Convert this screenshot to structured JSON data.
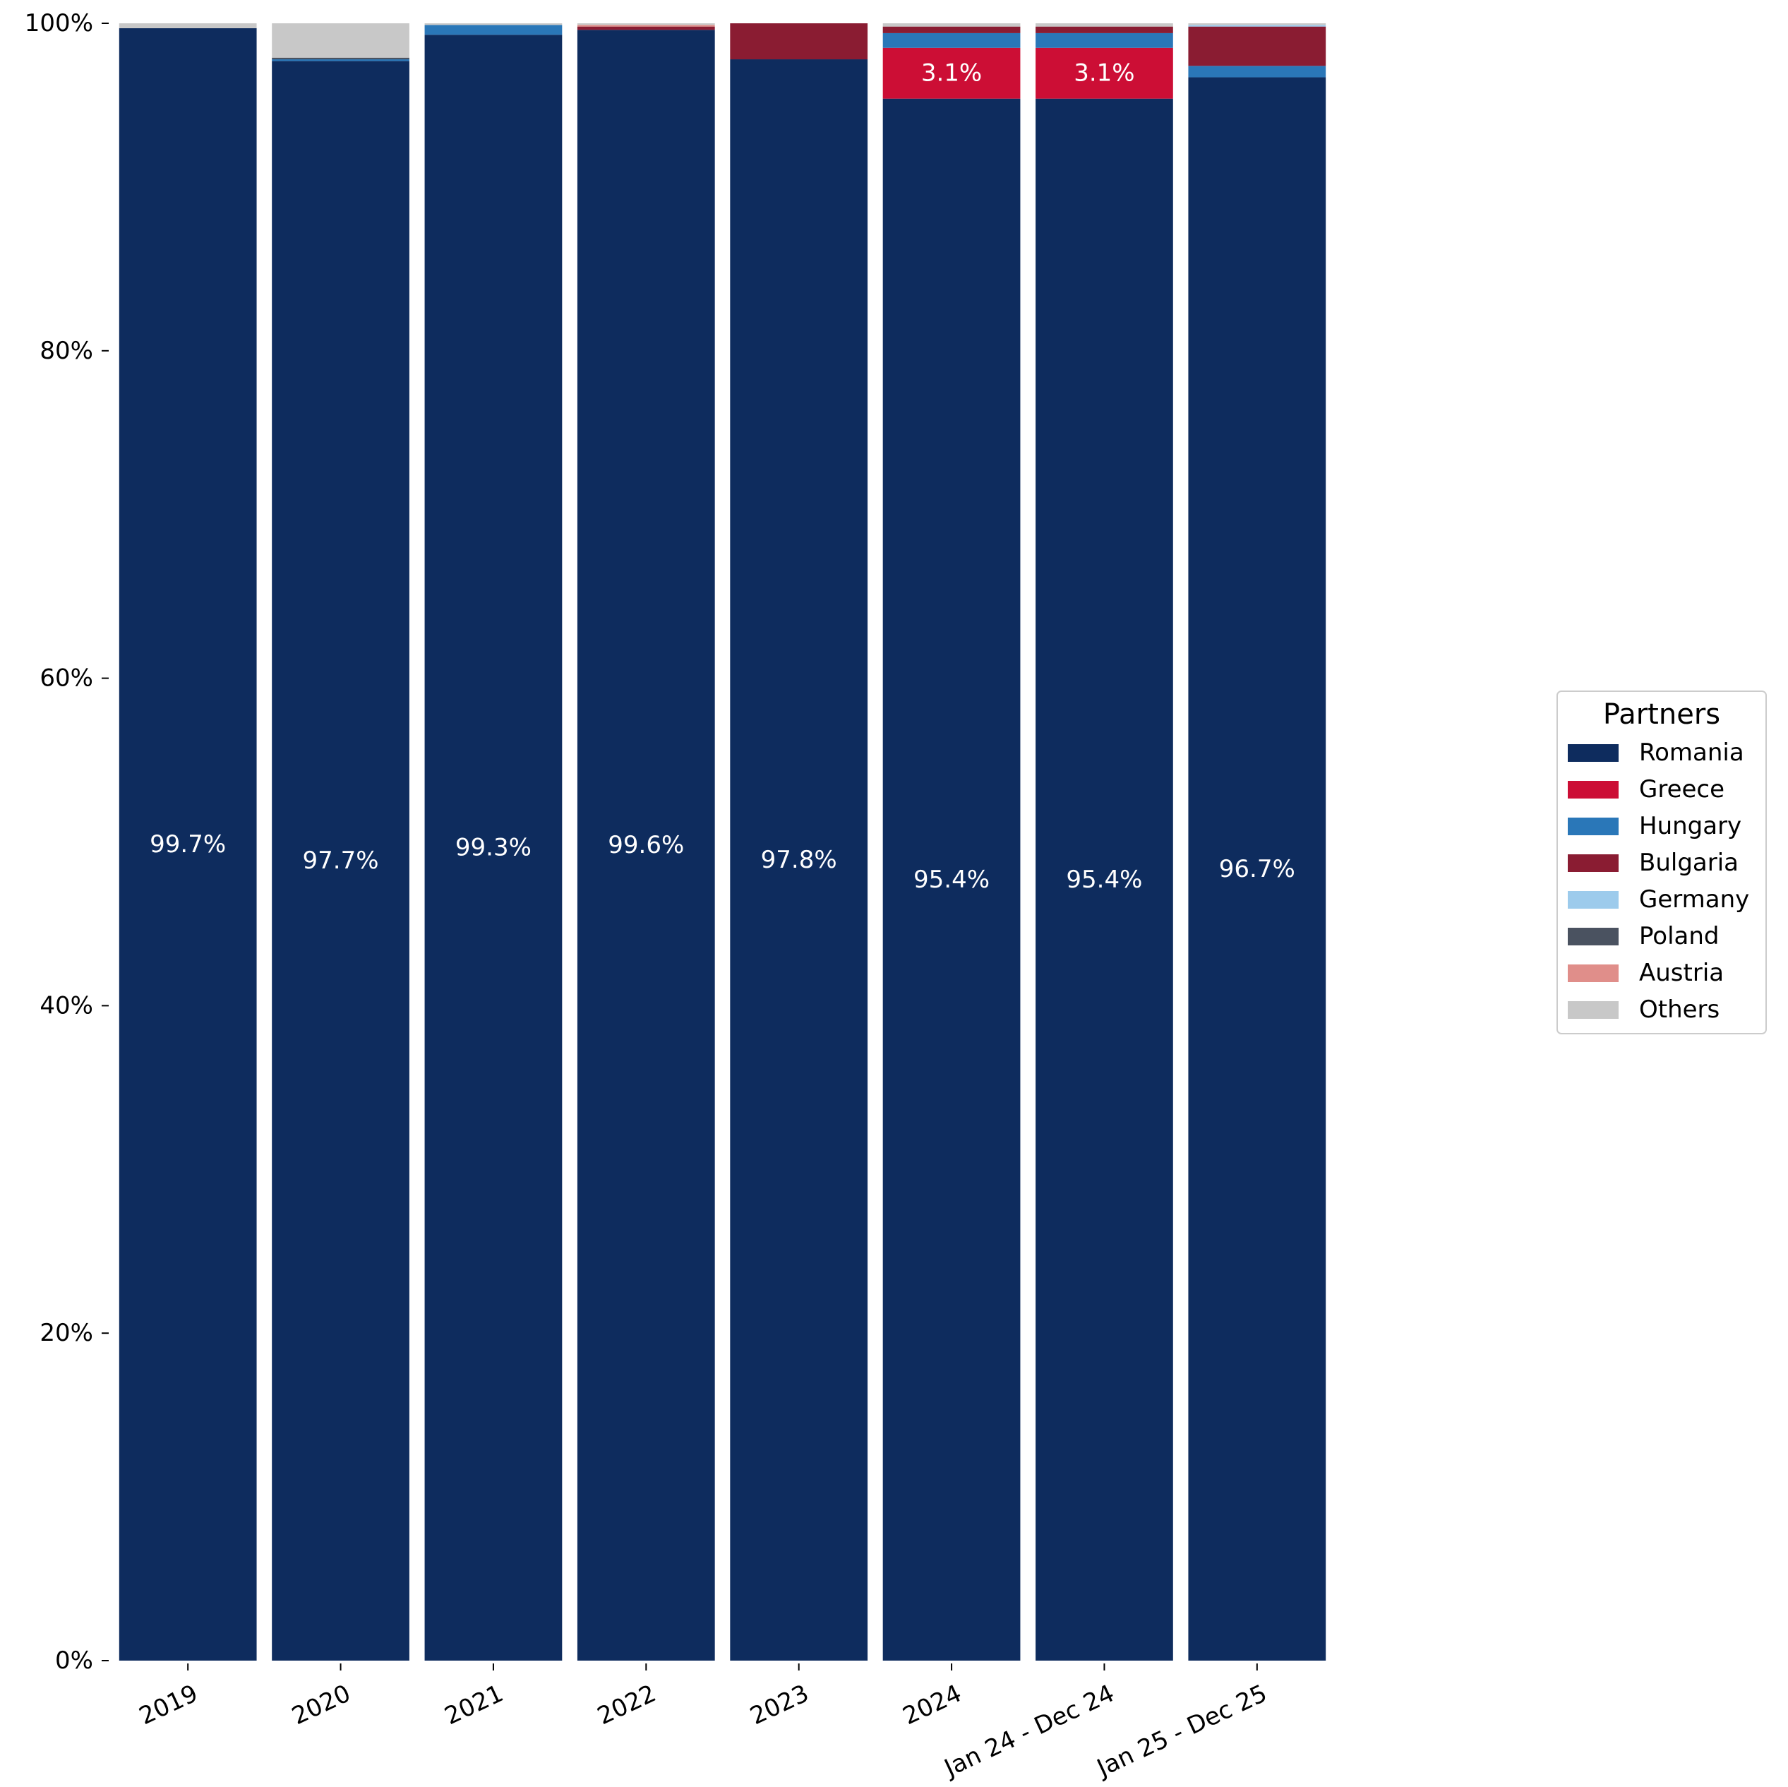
{
  "chart_data": {
    "type": "bar",
    "stacked": true,
    "percent_stacked": true,
    "categories": [
      "2019",
      "2020",
      "2021",
      "2022",
      "2023",
      "2024",
      "Jan 24 - Dec 24",
      "Jan 25 - Dec 25"
    ],
    "series": [
      {
        "name": "Romania",
        "color": "#0e2c5e",
        "values": [
          99.7,
          97.7,
          99.3,
          99.6,
          97.8,
          95.4,
          95.4,
          96.7
        ]
      },
      {
        "name": "Greece",
        "color": "#cc0e35",
        "values": [
          0.0,
          0.0,
          0.0,
          0.0,
          0.0,
          3.1,
          3.1,
          0.0
        ]
      },
      {
        "name": "Hungary",
        "color": "#2a77b8",
        "values": [
          0.0,
          0.1,
          0.6,
          0.0,
          0.0,
          0.9,
          0.9,
          0.7
        ]
      },
      {
        "name": "Bulgaria",
        "color": "#8a1c32",
        "values": [
          0.0,
          0.0,
          0.0,
          0.2,
          2.2,
          0.4,
          0.4,
          2.4
        ]
      },
      {
        "name": "Germany",
        "color": "#9dcbec",
        "values": [
          0.0,
          0.0,
          0.0,
          0.0,
          0.0,
          0.0,
          0.0,
          0.1
        ]
      },
      {
        "name": "Poland",
        "color": "#4a5260",
        "values": [
          0.0,
          0.1,
          0.0,
          0.0,
          0.0,
          0.0,
          0.0,
          0.0
        ]
      },
      {
        "name": "Austria",
        "color": "#e08e8a",
        "values": [
          0.0,
          0.0,
          0.0,
          0.1,
          0.0,
          0.0,
          0.0,
          0.0
        ]
      },
      {
        "name": "Others",
        "color": "#c8c8c8",
        "values": [
          0.3,
          2.1,
          0.1,
          0.1,
          0.0,
          0.2,
          0.2,
          0.1
        ]
      }
    ],
    "data_labels": [
      {
        "category": "2019",
        "series": "Romania",
        "text": "99.7%"
      },
      {
        "category": "2020",
        "series": "Romania",
        "text": "97.7%"
      },
      {
        "category": "2021",
        "series": "Romania",
        "text": "99.3%"
      },
      {
        "category": "2022",
        "series": "Romania",
        "text": "99.6%"
      },
      {
        "category": "2023",
        "series": "Romania",
        "text": "97.8%"
      },
      {
        "category": "2024",
        "series": "Romania",
        "text": "95.4%"
      },
      {
        "category": "2024",
        "series": "Greece",
        "text": "3.1%"
      },
      {
        "category": "Jan 24 - Dec 24",
        "series": "Romania",
        "text": "95.4%"
      },
      {
        "category": "Jan 24 - Dec 24",
        "series": "Greece",
        "text": "3.1%"
      },
      {
        "category": "Jan 25 - Dec 25",
        "series": "Romania",
        "text": "96.7%"
      }
    ],
    "title": "",
    "xlabel": "",
    "ylabel": "",
    "ylim": [
      0,
      100
    ],
    "y_ticks": [
      0,
      20,
      40,
      60,
      80,
      100
    ],
    "y_tick_labels": [
      "0%",
      "20%",
      "40%",
      "60%",
      "80%",
      "100%"
    ],
    "grid": false,
    "legend": {
      "title": "Partners",
      "position": "right"
    }
  }
}
